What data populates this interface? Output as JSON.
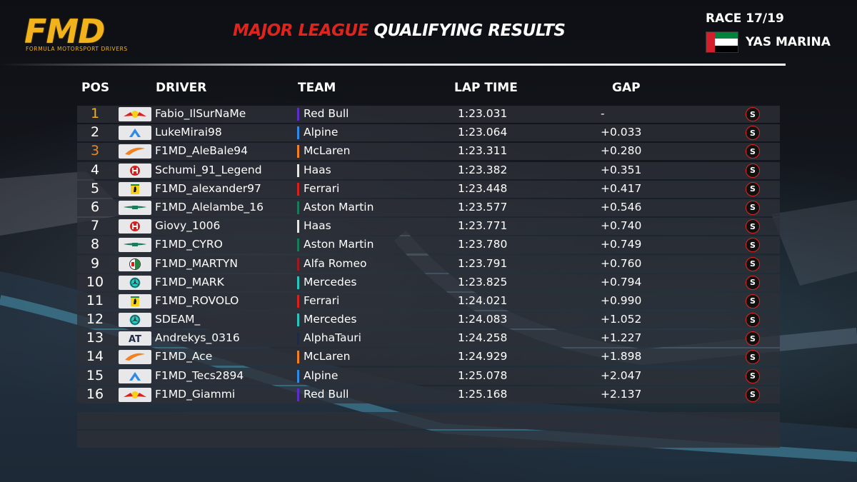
{
  "brand": {
    "logo_text": "FMD",
    "logo_subtitle": "FORMULA MOTORSPORT DRIVERS"
  },
  "title": {
    "part1": "MAJOR LEAGUE",
    "part2": "QUALIFYING RESULTS"
  },
  "race": {
    "label": "RACE 17/19",
    "venue": "YAS MARINA",
    "flag_icon": "uae-flag-icon"
  },
  "columns": {
    "pos": "POS",
    "driver": "DRIVER",
    "team": "TEAM",
    "lap_time": "LAP TIME",
    "gap": "GAP"
  },
  "colors": {
    "title_red": "#e0231b",
    "gold_pos": "#f2b21c",
    "bronze_pos": "#e48a2a",
    "badge_red": "#e3231b"
  },
  "results": [
    {
      "pos": "1",
      "driver": "Fabio_IlSurNaMe",
      "team": "Red Bull",
      "lap_time": "1:23.031",
      "gap": "-",
      "team_icon": "red-bull-icon",
      "team_color": "#5a2ec7",
      "badge": "S"
    },
    {
      "pos": "2",
      "driver": "LukeMirai98",
      "team": "Alpine",
      "lap_time": "1:23.064",
      "gap": "+0.033",
      "team_icon": "alpine-icon",
      "team_color": "#2f8ae6",
      "badge": "S"
    },
    {
      "pos": "3",
      "driver": "F1MD_AleBale94",
      "team": "McLaren",
      "lap_time": "1:23.311",
      "gap": "+0.280",
      "team_icon": "mclaren-icon",
      "team_color": "#f58020",
      "badge": "S"
    },
    {
      "pos": "4",
      "driver": "Schumi_91_Legend",
      "team": "Haas",
      "lap_time": "1:23.382",
      "gap": "+0.351",
      "team_icon": "haas-icon",
      "team_color": "#e6e6e6",
      "badge": "S"
    },
    {
      "pos": "5",
      "driver": "F1MD_alexander97",
      "team": "Ferrari",
      "lap_time": "1:23.448",
      "gap": "+0.417",
      "team_icon": "ferrari-icon",
      "team_color": "#d8201c",
      "badge": "S"
    },
    {
      "pos": "6",
      "driver": "F1MD_Alelambe_16",
      "team": "Aston Martin",
      "lap_time": "1:23.577",
      "gap": "+0.546",
      "team_icon": "aston-martin-icon",
      "team_color": "#1a7a5a",
      "badge": "S"
    },
    {
      "pos": "7",
      "driver": "Giovy_1006",
      "team": "Haas",
      "lap_time": "1:23.771",
      "gap": "+0.740",
      "team_icon": "haas-icon",
      "team_color": "#e6e6e6",
      "badge": "S"
    },
    {
      "pos": "8",
      "driver": "F1MD_CYRO",
      "team": "Aston Martin",
      "lap_time": "1:23.780",
      "gap": "+0.749",
      "team_icon": "aston-martin-icon",
      "team_color": "#1a7a5a",
      "badge": "S"
    },
    {
      "pos": "9",
      "driver": "F1MD_MARTYN",
      "team": "Alfa Romeo",
      "lap_time": "1:23.791",
      "gap": "+0.760",
      "team_icon": "alfa-romeo-icon",
      "team_color": "#9b1b1f",
      "badge": "S"
    },
    {
      "pos": "10",
      "driver": "F1MD_MARK",
      "team": "Mercedes",
      "lap_time": "1:23.825",
      "gap": "+0.794",
      "team_icon": "mercedes-icon",
      "team_color": "#27c7c0",
      "badge": "S"
    },
    {
      "pos": "11",
      "driver": "F1MD_ROVOLO",
      "team": "Ferrari",
      "lap_time": "1:24.021",
      "gap": "+0.990",
      "team_icon": "ferrari-icon",
      "team_color": "#d8201c",
      "badge": "S"
    },
    {
      "pos": "12",
      "driver": "SDEAM_",
      "team": "Mercedes",
      "lap_time": "1:24.083",
      "gap": "+1.052",
      "team_icon": "mercedes-icon",
      "team_color": "#27c7c0",
      "badge": "S"
    },
    {
      "pos": "13",
      "driver": "Andrekys_0316",
      "team": "AlphaTauri",
      "lap_time": "1:24.258",
      "gap": "+1.227",
      "team_icon": "alphatauri-icon",
      "team_color": "#1f2a44",
      "badge": "S"
    },
    {
      "pos": "14",
      "driver": "F1MD_Ace",
      "team": "McLaren",
      "lap_time": "1:24.929",
      "gap": "+1.898",
      "team_icon": "mclaren-icon",
      "team_color": "#f58020",
      "badge": "S"
    },
    {
      "pos": "15",
      "driver": "F1MD_Tecs2894",
      "team": "Alpine",
      "lap_time": "1:25.078",
      "gap": "+2.047",
      "team_icon": "alpine-icon",
      "team_color": "#2f8ae6",
      "badge": "S"
    },
    {
      "pos": "16",
      "driver": "F1MD_Giammi",
      "team": "Red Bull",
      "lap_time": "1:25.168",
      "gap": "+2.137",
      "team_icon": "red-bull-icon",
      "team_color": "#5a2ec7",
      "badge": "S"
    }
  ]
}
